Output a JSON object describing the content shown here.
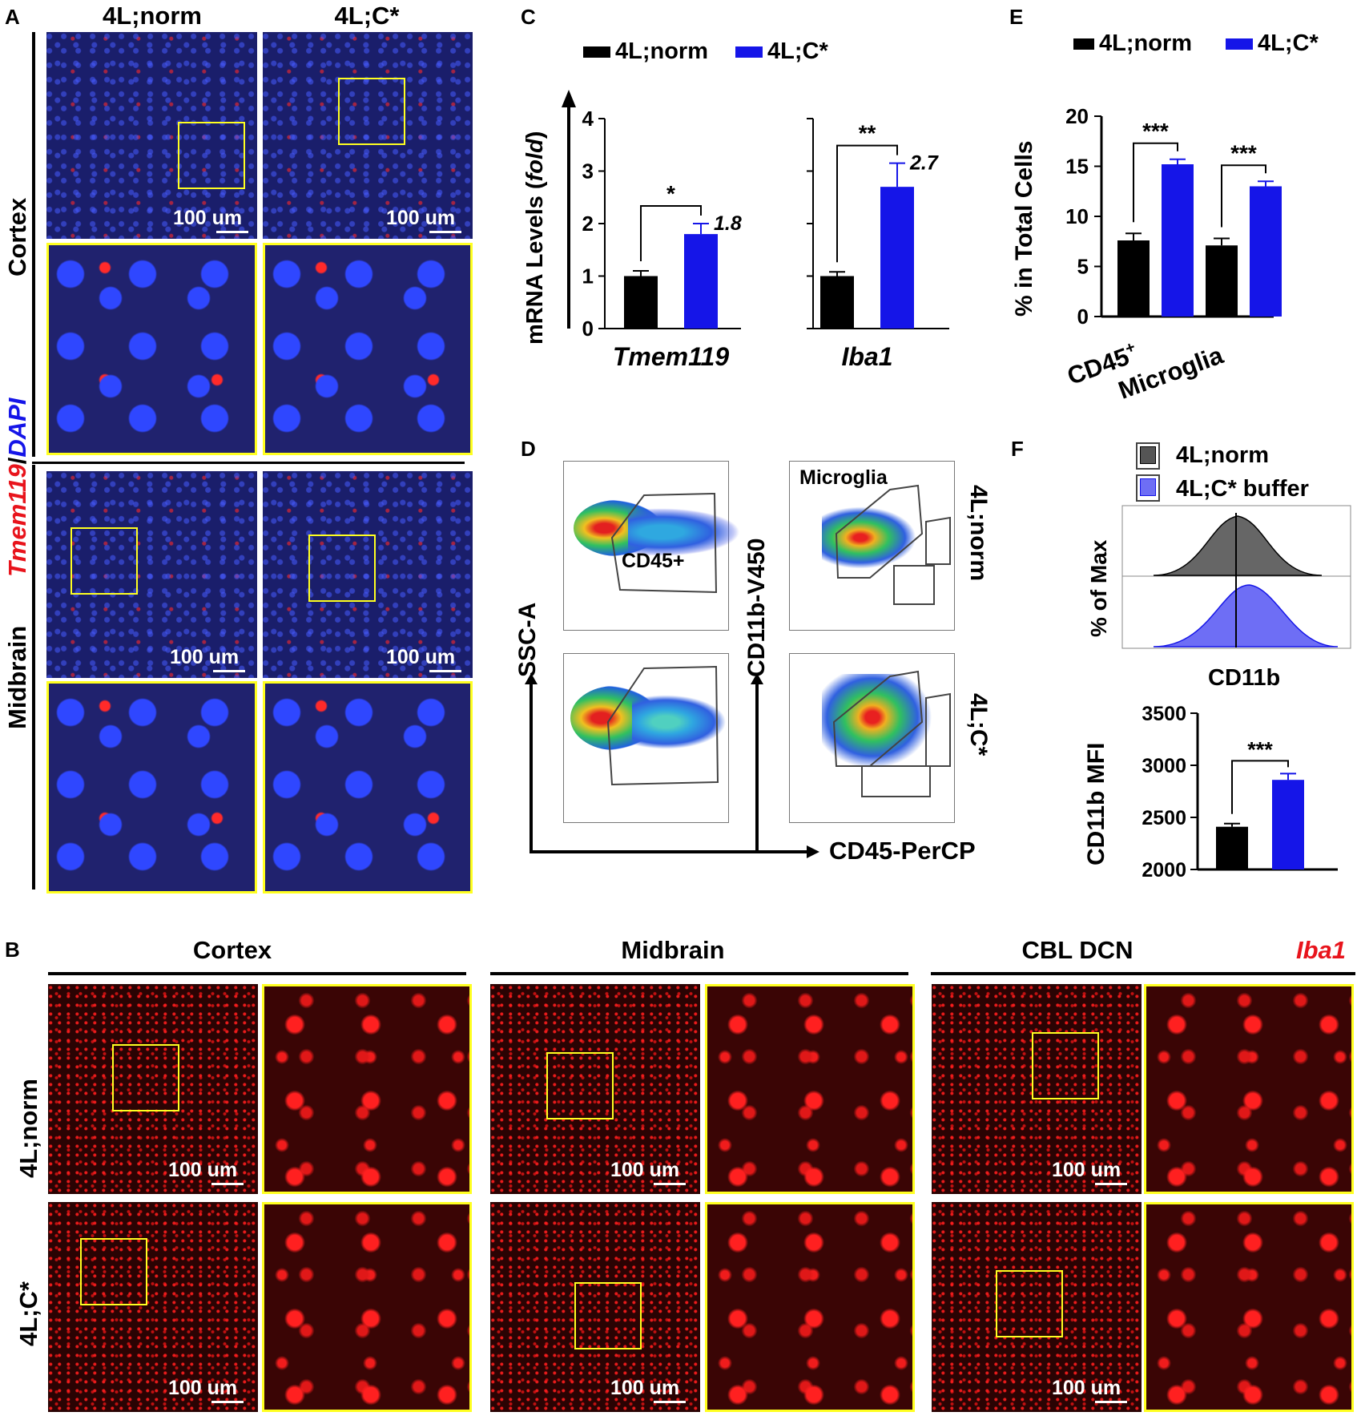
{
  "colors": {
    "norm": "#000000",
    "cstar": "#1515e8",
    "yellow": "#ffff20",
    "red_label": "#e8141c",
    "blue_label": "#1515e8"
  },
  "panelA": {
    "label": "A",
    "col_norm": "4L;norm",
    "col_cstar": "4L;C*",
    "row_cortex": "Cortex",
    "row_midbrain": "Midbrain",
    "stain_red": "Tmem119",
    "stain_sep": "/",
    "stain_blue": "DAPI",
    "scale": "100 um"
  },
  "panelB": {
    "label": "B",
    "regions": [
      "Cortex",
      "Midbrain",
      "CBL DCN"
    ],
    "marker": "Iba1",
    "row_norm": "4L;norm",
    "row_cstar": "4L;C*",
    "scale": "100 um"
  },
  "panelC": {
    "label": "C",
    "legend": [
      "4L;norm",
      "4L;C*"
    ],
    "ylabel_main": "mRNA Levels (",
    "ylabel_italic": "fold",
    "ylabel_end": ")",
    "yticks": [
      "0",
      "1",
      "2",
      "3",
      "4"
    ],
    "sig": [
      "*",
      "**"
    ],
    "fold": [
      "1.8",
      "2.7"
    ]
  },
  "panelD": {
    "label": "D",
    "gate1": "CD45+",
    "gate2": "Microglia",
    "ylabel1": "SSC-A",
    "ylabel2": "CD11b-V450",
    "xlabel": "CD45-PerCP",
    "row_norm": "4L;norm",
    "row_cstar": "4L;C*"
  },
  "panelE": {
    "label": "E",
    "legend": [
      "4L;norm",
      "4L;C*"
    ],
    "ylabel": "% in Total Cells",
    "yticks": [
      "0",
      "5",
      "10",
      "15",
      "20"
    ],
    "cat1": "CD45",
    "cat1_sup": "+",
    "cat2": "Microglia",
    "sig": "***"
  },
  "panelF": {
    "label": "F",
    "legend": [
      "4L;norm",
      "4L;C* buffer"
    ],
    "hist_ylabel": "% of Max",
    "hist_xlabel": "CD11b",
    "mfi_ylabel": "CD11b MFI",
    "mfi_yticks": [
      "2000",
      "2500",
      "3000",
      "3500"
    ],
    "sig": "***"
  },
  "chart_data": [
    {
      "type": "bar",
      "categories": [
        "Tmem119",
        "Iba1"
      ],
      "series": [
        {
          "name": "4L;norm",
          "values": [
            1.0,
            1.0
          ],
          "errors": [
            0.1,
            0.08
          ]
        },
        {
          "name": "4L;C*",
          "values": [
            1.8,
            2.7
          ],
          "errors": [
            0.2,
            0.45
          ]
        }
      ],
      "ylabel": "mRNA Levels (fold)",
      "ylim": [
        0,
        4
      ]
    },
    {
      "type": "bar",
      "categories": [
        "CD45+",
        "Microglia"
      ],
      "series": [
        {
          "name": "4L;norm",
          "values": [
            7.6,
            7.1
          ],
          "errors": [
            0.7,
            0.7
          ]
        },
        {
          "name": "4L;C*",
          "values": [
            15.2,
            13.0
          ],
          "errors": [
            0.5,
            0.5
          ]
        }
      ],
      "ylabel": "% in Total Cells",
      "ylim": [
        0,
        20
      ]
    },
    {
      "type": "bar",
      "categories": [
        "4L;norm",
        "4L;C* buffer"
      ],
      "values": [
        2410,
        2860
      ],
      "errors": [
        30,
        60
      ],
      "ylabel": "CD11b MFI",
      "ylim": [
        2000,
        3500
      ]
    }
  ]
}
